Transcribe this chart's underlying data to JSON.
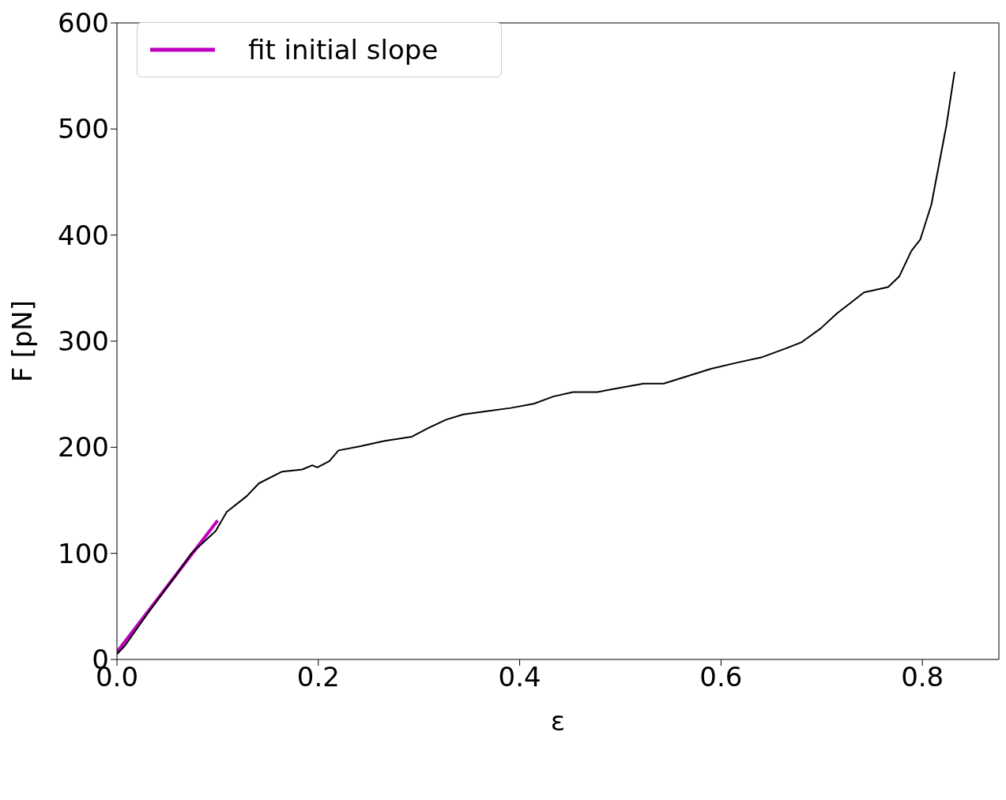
{
  "chart_data": {
    "type": "line",
    "xlabel": "ε",
    "ylabel": "F [pN]",
    "xlim": [
      0,
      0.876
    ],
    "ylim": [
      0,
      600
    ],
    "xticks": [
      {
        "value": 0,
        "label": "0.0"
      },
      {
        "value": 0.2,
        "label": "0.2"
      },
      {
        "value": 0.4,
        "label": "0.4"
      },
      {
        "value": 0.6,
        "label": "0.6"
      },
      {
        "value": 0.8,
        "label": "0.8"
      }
    ],
    "yticks": [
      0,
      100,
      200,
      300,
      400,
      500,
      600
    ],
    "legend": "top left",
    "marker": "none",
    "line_style": "solid",
    "series": [
      {
        "color": "#000000",
        "x": [
          0,
          0.008,
          0.031,
          0.059,
          0.074,
          0.098,
          0.109,
          0.129,
          0.141,
          0.164,
          0.184,
          0.194,
          0.199,
          0.211,
          0.22,
          0.242,
          0.266,
          0.293,
          0.309,
          0.327,
          0.344,
          0.367,
          0.391,
          0.414,
          0.434,
          0.453,
          0.477,
          0.5,
          0.523,
          0.543,
          0.563,
          0.59,
          0.617,
          0.641,
          0.664,
          0.68,
          0.699,
          0.715,
          0.73,
          0.742,
          0.766,
          0.777,
          0.789,
          0.798,
          0.809,
          0.816,
          0.824,
          0.832
        ],
        "values": [
          5,
          13,
          44,
          80,
          100,
          121,
          139,
          154,
          166,
          177,
          179,
          183,
          181,
          187,
          197,
          201,
          206,
          210,
          218,
          226,
          231,
          234,
          237,
          241,
          248,
          252,
          252,
          256,
          260,
          260,
          266,
          274,
          280,
          285,
          293,
          299,
          312,
          326,
          337,
          346,
          351,
          361,
          385,
          396,
          429,
          464,
          504,
          554
        ]
      },
      {
        "name": "fit initial slope",
        "color": "#bf00bf",
        "x": [
          0,
          0.1
        ],
        "values": [
          7,
          131
        ]
      }
    ]
  }
}
